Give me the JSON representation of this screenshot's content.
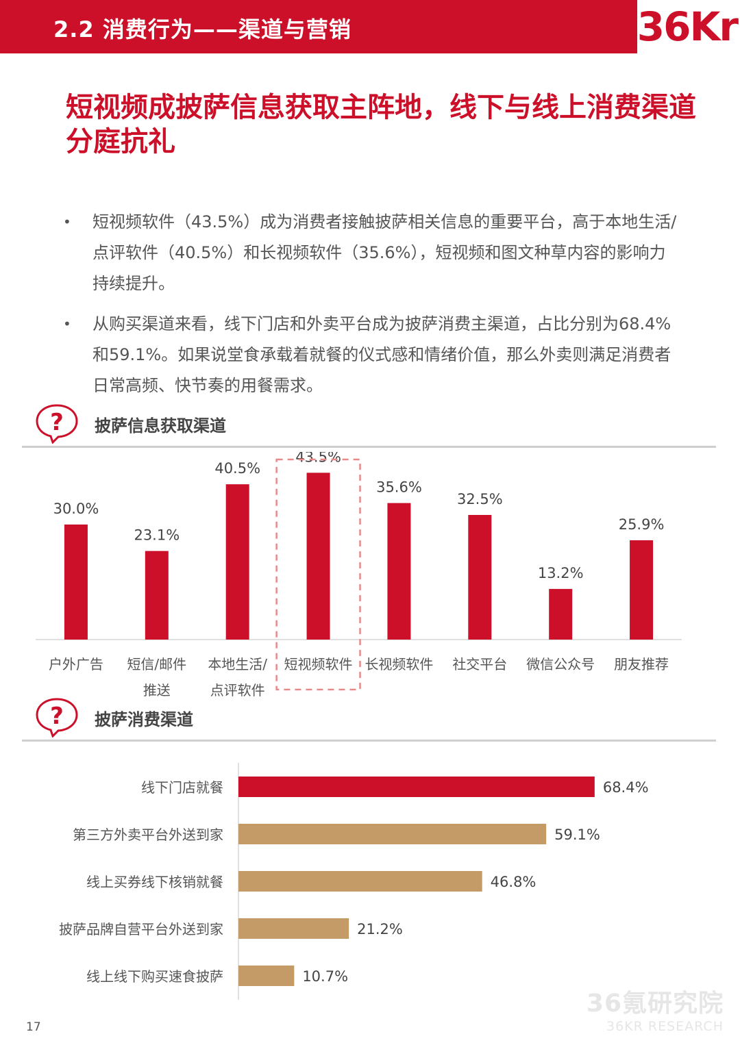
{
  "header": {
    "title": "2.2 消费行为——渠道与营销",
    "logo_text": "36Kr"
  },
  "headline": "短视频成披萨信息获取主阵地，线下与线上消费渠道分庭抗礼",
  "bullets": [
    "短视频软件（43.5%）成为消费者接触披萨相关信息的重要平台，高于本地生活/点评软件（40.5%）和长视频软件（35.6%），短视频和图文种草内容的影响力持续提升。",
    "从购买渠道来看，线下门店和外卖平台成为披萨消费主渠道，占比分别为68.4%和59.1%。如果说堂食承载着就餐的仪式感和情绪价值，那么外卖则满足消费者日常高频、快节奏的用餐需求。"
  ],
  "bullet_symbol": "•",
  "colors": {
    "accent": "#cc1029",
    "bar_secondary": "#c49a66",
    "highlight_box": "#e88a8a"
  },
  "chart_data": [
    {
      "type": "bar",
      "orientation": "vertical",
      "title": "披萨信息获取渠道",
      "icon": "question-bubble-icon",
      "categories": [
        [
          "户外广告"
        ],
        [
          "短信/邮件",
          "推送"
        ],
        [
          "本地生活/",
          "点评软件"
        ],
        [
          "短视频软件"
        ],
        [
          "长视频软件"
        ],
        [
          "社交平台"
        ],
        [
          "微信公众号"
        ],
        [
          "朋友推荐"
        ]
      ],
      "values": [
        30.0,
        23.1,
        40.5,
        43.5,
        35.6,
        32.5,
        13.2,
        25.9
      ],
      "value_labels": [
        "30.0%",
        "23.1%",
        "40.5%",
        "43.5%",
        "35.6%",
        "32.5%",
        "13.2%",
        "25.9%"
      ],
      "highlight_index": 3,
      "ylim": [
        0,
        45
      ],
      "bar_color": "#cc1029",
      "grid": false
    },
    {
      "type": "bar",
      "orientation": "horizontal",
      "title": "披萨消费渠道",
      "icon": "question-bubble-icon",
      "categories": [
        "线下门店就餐",
        "第三方外卖平台外送到家",
        "线上买券线下核销就餐",
        "披萨品牌自营平台外送到家",
        "线上线下购买速食披萨"
      ],
      "values": [
        68.4,
        59.1,
        46.8,
        21.2,
        10.7
      ],
      "value_labels": [
        "68.4%",
        "59.1%",
        "46.8%",
        "21.2%",
        "10.7%"
      ],
      "bar_colors": [
        "#cc1029",
        "#c49a66",
        "#c49a66",
        "#c49a66",
        "#c49a66"
      ],
      "xlim": [
        0,
        70
      ],
      "grid": false
    }
  ],
  "footer": {
    "page_number": "17",
    "watermark_line1": "36氪研究院",
    "watermark_line2": "36KR RESEARCH"
  }
}
